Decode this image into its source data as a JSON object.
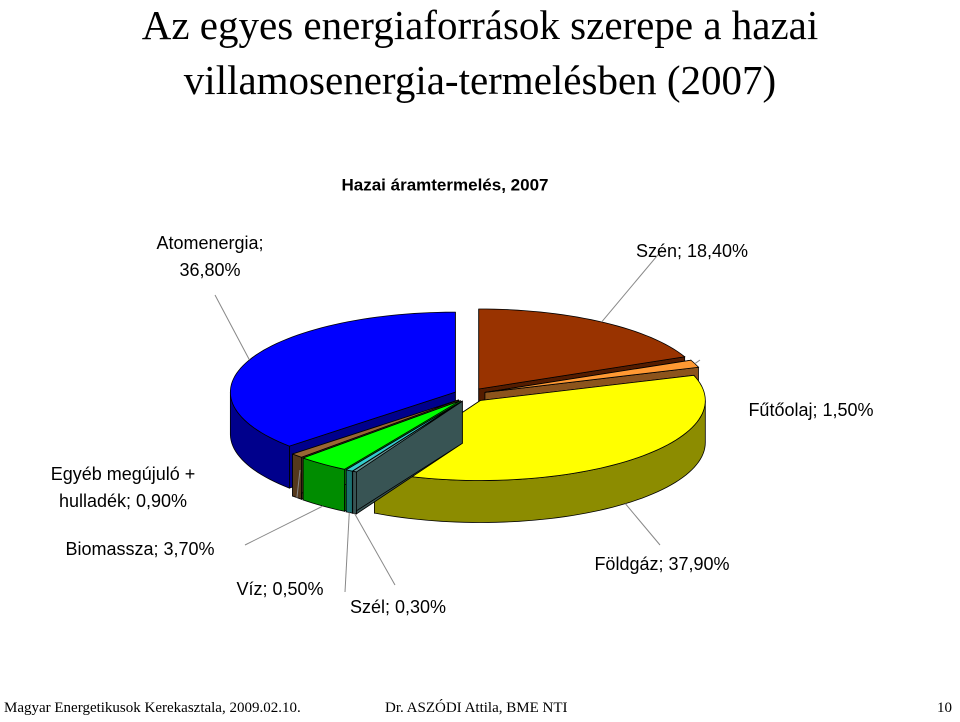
{
  "slide_title": [
    "Az egyes energiaforrások szerepe a hazai",
    "villamosenergia-termelésben (2007)"
  ],
  "footer": {
    "left": "Magyar Energetikusok Kerekasztala, 2009.02.10.",
    "center": "Dr. ASZÓDI Attila, BME NTI",
    "right": "10"
  },
  "chart_data": {
    "type": "pie3d",
    "title": "Hazai áramtermelés, 2007",
    "categories": [
      "Szén;",
      "Fűtőolaj;",
      "Földgáz;",
      "Szél;",
      "Víz;",
      "Biomassza;",
      "Egyéb megújuló + hulladék;",
      "Atomenergia;"
    ],
    "values": [
      18.4,
      1.5,
      37.9,
      0.3,
      0.5,
      3.7,
      0.9,
      36.8
    ],
    "value_labels": [
      "18,40%",
      "1,50%",
      "37,90%",
      "0,30%",
      "0,50%",
      "3,70%",
      "0,90%",
      "36,80%"
    ],
    "colors": [
      "#993300",
      "#ff9933",
      "#ffff00",
      "#669999",
      "#33cccc",
      "#00ff00",
      "#996633",
      "#0000ff"
    ]
  }
}
